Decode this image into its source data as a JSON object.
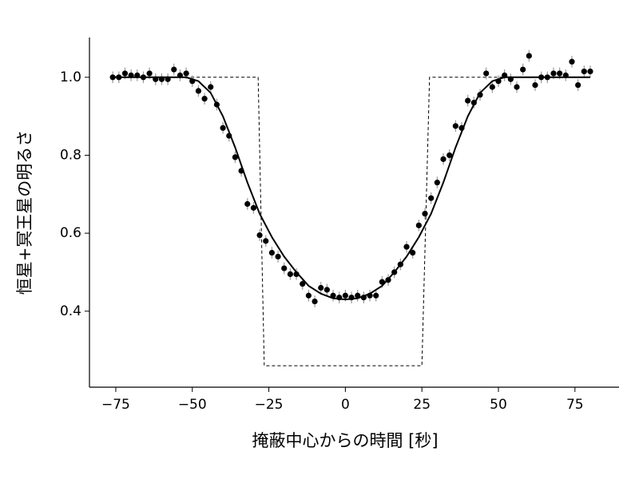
{
  "chart_data": {
    "type": "scatter",
    "xlabel": "掩蔽中心からの時間 [秒]",
    "ylabel": "恒星+冥王星の明るさ",
    "xlim": [
      -83.6,
      89.4
    ],
    "ylim": [
      0.205,
      1.102
    ],
    "xticks": [
      {
        "value": -75,
        "label": "−75"
      },
      {
        "value": -50,
        "label": "−50"
      },
      {
        "value": -25,
        "label": "−25"
      },
      0,
      25,
      50,
      75
    ],
    "yticks": [
      0.4,
      0.6,
      0.8,
      {
        "value": 1,
        "label": "1.0"
      }
    ],
    "error": 0.015,
    "points": {
      "color": "#000000",
      "x": [
        -76,
        -74,
        -72,
        -70,
        -68,
        -66,
        -64,
        -62,
        -60,
        -58,
        -56,
        -54,
        -52,
        -50,
        -48,
        -46,
        -44,
        -42,
        -40,
        -38,
        -36,
        -34,
        -32,
        -30,
        -28,
        -26,
        -24,
        -22,
        -20,
        -18,
        -16,
        -14,
        -12,
        -10,
        -8,
        -6,
        -4,
        -2,
        0,
        2,
        4,
        6,
        8,
        10,
        12,
        14,
        16,
        18,
        20,
        22,
        24,
        26,
        28,
        30,
        32,
        34,
        36,
        38,
        40,
        42,
        44,
        46,
        48,
        50,
        52,
        54,
        56,
        58,
        60,
        62,
        64,
        66,
        68,
        70,
        72,
        74,
        76,
        78,
        80
      ],
      "values": [
        1.0,
        1.0,
        1.01,
        1.005,
        1.005,
        1.0,
        1.01,
        0.995,
        0.995,
        0.995,
        1.02,
        1.005,
        1.01,
        0.99,
        0.965,
        0.945,
        0.975,
        0.93,
        0.87,
        0.85,
        0.795,
        0.76,
        0.675,
        0.665,
        0.595,
        0.58,
        0.55,
        0.54,
        0.51,
        0.495,
        0.495,
        0.47,
        0.44,
        0.425,
        0.46,
        0.455,
        0.44,
        0.435,
        0.44,
        0.435,
        0.44,
        0.435,
        0.44,
        0.44,
        0.475,
        0.48,
        0.5,
        0.52,
        0.565,
        0.55,
        0.62,
        0.65,
        0.69,
        0.73,
        0.79,
        0.8,
        0.875,
        0.87,
        0.94,
        0.935,
        0.955,
        1.01,
        0.975,
        0.99,
        1.005,
        0.995,
        0.975,
        1.02,
        1.055,
        0.98,
        1.0,
        1.0,
        1.01,
        1.01,
        1.005,
        1.04,
        0.98,
        1.015,
        1.015
      ]
    },
    "model": {
      "color": "#000000",
      "x": [
        -76,
        -72,
        -68,
        -64,
        -60,
        -56,
        -52,
        -48,
        -44,
        -40,
        -36,
        -32,
        -28,
        -24,
        -20,
        -16,
        -12,
        -8,
        -4,
        0,
        4,
        8,
        12,
        16,
        20,
        24,
        28,
        32,
        36,
        40,
        44,
        48,
        52,
        56,
        60,
        64,
        68,
        72,
        76,
        80
      ],
      "values": [
        1,
        1,
        1,
        1,
        1,
        1,
        1,
        0.99,
        0.96,
        0.9,
        0.82,
        0.73,
        0.65,
        0.59,
        0.54,
        0.5,
        0.465,
        0.445,
        0.433,
        0.43,
        0.433,
        0.445,
        0.465,
        0.5,
        0.54,
        0.59,
        0.65,
        0.73,
        0.82,
        0.9,
        0.96,
        0.99,
        1,
        1,
        1,
        1,
        1,
        1,
        1,
        1
      ]
    },
    "step": {
      "color": "#000000",
      "x": [
        -76,
        -28.5,
        -26.5,
        25,
        27.5,
        80
      ],
      "values": [
        1,
        1,
        0.26,
        0.26,
        1,
        1
      ]
    }
  }
}
